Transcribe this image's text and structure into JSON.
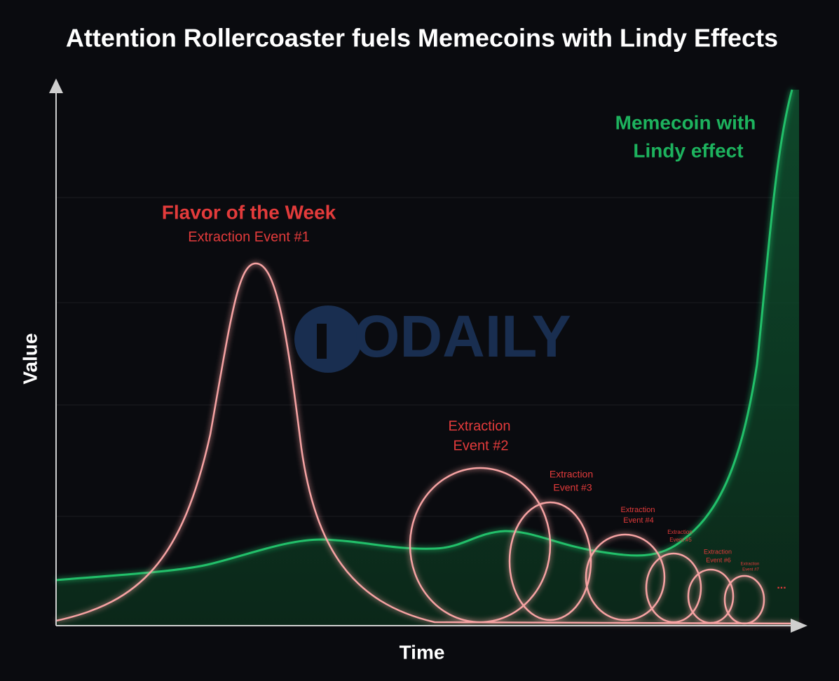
{
  "title": "Attention Rollercoaster fuels Memecoins with Lindy Effects",
  "axes": {
    "y_label": "Value",
    "x_label": "Time"
  },
  "watermark": "ODAILY",
  "flavor": {
    "title": "Flavor of the Week",
    "subtitle": "Extraction Event #1"
  },
  "memecoin": {
    "lines": [
      "Memecoin with",
      "Lindy effect"
    ]
  },
  "events": [
    {
      "lines": [
        "Extraction",
        "Event #2"
      ]
    },
    {
      "lines": [
        "Extraction",
        "Event #3"
      ]
    },
    {
      "lines": [
        "Extraction",
        "Event #4"
      ]
    },
    {
      "lines": [
        "Extraction",
        "Event #5"
      ]
    },
    {
      "lines": [
        "Extraction",
        "Event #6"
      ]
    },
    {
      "lines": [
        "Extraction",
        "Event #7"
      ]
    }
  ],
  "ellipsis": "..."
}
